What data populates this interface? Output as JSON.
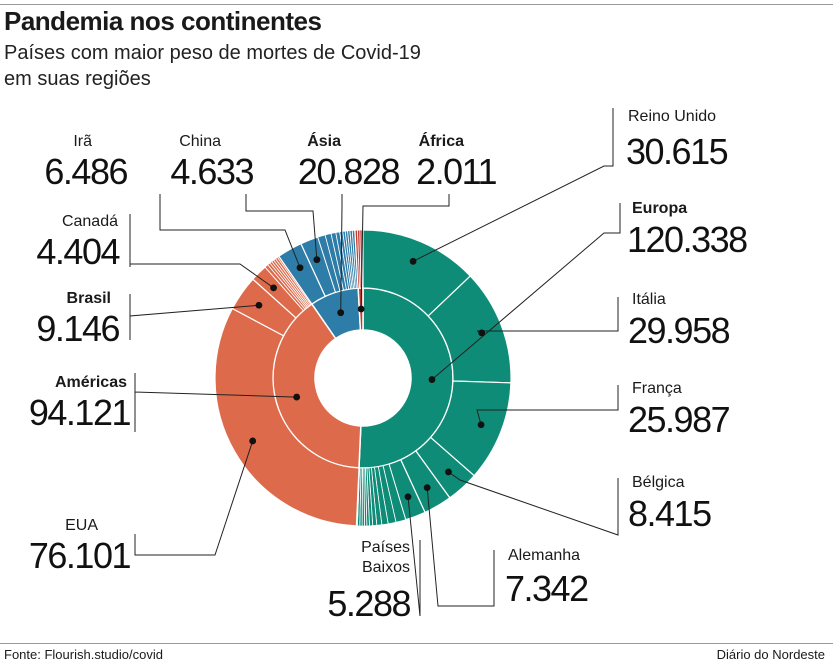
{
  "header": {
    "title": "Pandemia nos continentes",
    "subtitle": "Países com maior peso de mortes de Covid-19 em suas regiões"
  },
  "footer": {
    "source": "Fonte: Flourish.studio/covid",
    "credit": "Diário do Nordeste"
  },
  "colors": {
    "Europa": "#0f8c77",
    "Américas": "#dd6a4b",
    "Ásia": "#2e7ca8",
    "África": "#c8372c"
  },
  "chart_data": {
    "type": "sunburst",
    "continents": [
      {
        "name": "Europa",
        "value": 120338,
        "label": "120.338"
      },
      {
        "name": "Américas",
        "value": 94121,
        "label": "94.121"
      },
      {
        "name": "Ásia",
        "value": 20828,
        "label": "20.828"
      },
      {
        "name": "África",
        "value": 2011,
        "label": "2.011"
      }
    ],
    "countries": [
      {
        "name": "Reino Unido",
        "continent": "Europa",
        "value": 30615,
        "label": "30.615"
      },
      {
        "name": "Itália",
        "continent": "Europa",
        "value": 29958,
        "label": "29.958"
      },
      {
        "name": "França",
        "continent": "Europa",
        "value": 25987,
        "label": "25.987"
      },
      {
        "name": "Bélgica",
        "continent": "Europa",
        "value": 8415,
        "label": "8.415"
      },
      {
        "name": "Alemanha",
        "continent": "Europa",
        "value": 7342,
        "label": "7.342"
      },
      {
        "name": "Países Baixos",
        "continent": "Europa",
        "value": 5288,
        "label": "5.288"
      },
      {
        "name": "EUA",
        "continent": "Américas",
        "value": 76101,
        "label": "76.101"
      },
      {
        "name": "Brasil",
        "continent": "Américas",
        "value": 9146,
        "label": "9.146"
      },
      {
        "name": "Canadá",
        "continent": "Américas",
        "value": 4404,
        "label": "4.404"
      },
      {
        "name": "Irã",
        "continent": "Ásia",
        "value": 6486,
        "label": "6.486"
      },
      {
        "name": "China",
        "continent": "Ásia",
        "value": 4633,
        "label": "4.633"
      }
    ],
    "labels": [
      {
        "key": "Reino Unido",
        "name": "Reino Unido",
        "value": "30.615",
        "bold": false
      },
      {
        "key": "Europa",
        "name": "Europa",
        "value": "120.338",
        "bold": true
      },
      {
        "key": "Itália",
        "name": "Itália",
        "value": "29.958",
        "bold": false
      },
      {
        "key": "França",
        "name": "França",
        "value": "25.987",
        "bold": false
      },
      {
        "key": "Bélgica",
        "name": "Bélgica",
        "value": "8.415",
        "bold": false
      },
      {
        "key": "Alemanha",
        "name": "Alemanha",
        "value": "7.342",
        "bold": false
      },
      {
        "key": "Países Baixos",
        "name": "Países Baixos",
        "value": "5.288",
        "bold": false
      },
      {
        "key": "EUA",
        "name": "EUA",
        "value": "76.101",
        "bold": false
      },
      {
        "key": "Américas",
        "name": "Américas",
        "value": "94.121",
        "bold": true
      },
      {
        "key": "Brasil",
        "name": "Brasil",
        "value": "9.146",
        "bold": true
      },
      {
        "key": "Canadá",
        "name": "Canadá",
        "value": "4.404",
        "bold": false
      },
      {
        "key": "Irã",
        "name": "Irã",
        "value": "6.486",
        "bold": false
      },
      {
        "key": "China",
        "name": "China",
        "value": "4.633",
        "bold": false
      },
      {
        "key": "Ásia",
        "name": "Ásia",
        "value": "20.828",
        "bold": true
      },
      {
        "key": "África",
        "name": "África",
        "value": "2.011",
        "bold": true
      }
    ]
  }
}
